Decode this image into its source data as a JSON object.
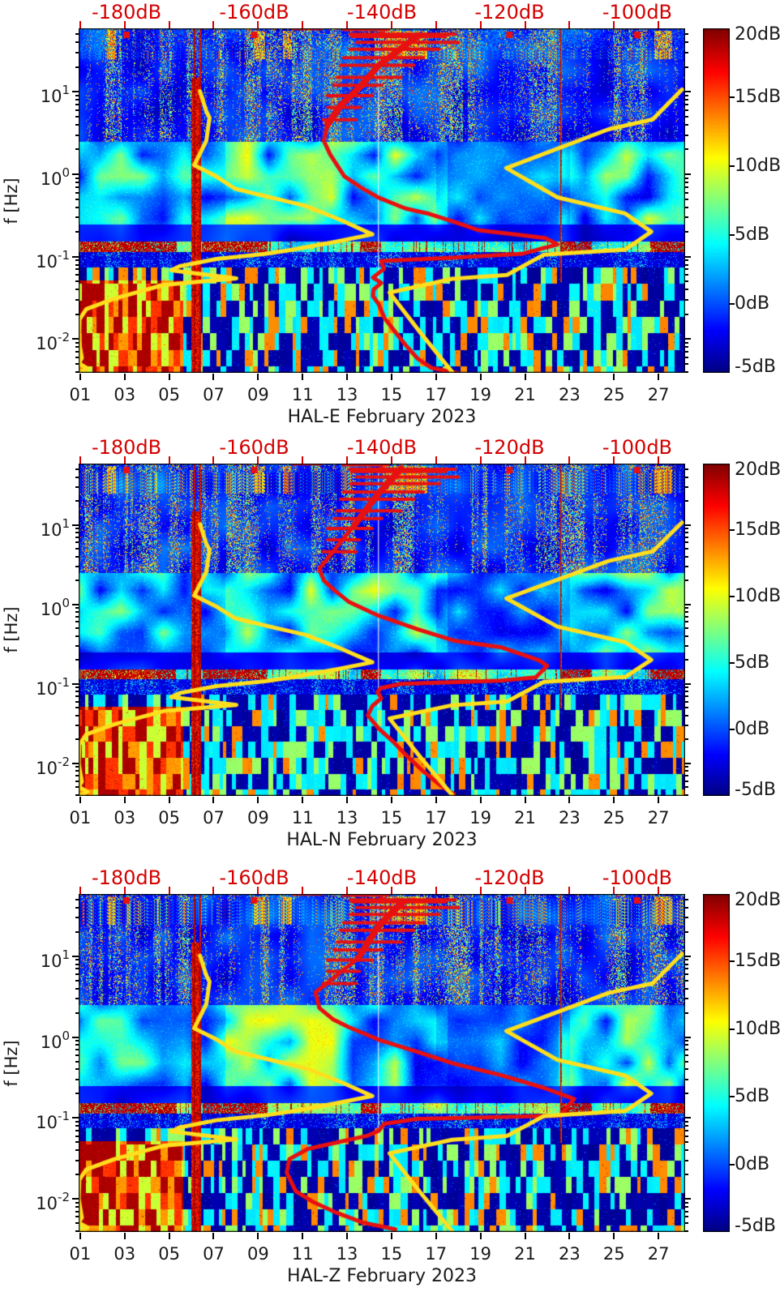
{
  "figure": {
    "background": "#ffffff",
    "ylabel": "f [Hz]",
    "panels": [
      {
        "id": "hal-e",
        "title": "HAL-E February 2023"
      },
      {
        "id": "hal-n",
        "title": "HAL-N February 2023"
      },
      {
        "id": "hal-z",
        "title": "HAL-Z February 2023"
      }
    ]
  },
  "axes": {
    "x_days": {
      "tick_labels": [
        "01",
        "03",
        "05",
        "07",
        "09",
        "11",
        "13",
        "15",
        "17",
        "19",
        "21",
        "23",
        "25",
        "27"
      ],
      "tick_days": [
        1,
        3,
        5,
        7,
        9,
        11,
        13,
        15,
        17,
        19,
        21,
        23,
        25,
        27
      ],
      "day_min": 0.93,
      "day_max": 28.2
    },
    "y_freq": {
      "unit": "Hz",
      "scale": "log",
      "decade_exponents": [
        1,
        0,
        -1,
        -2
      ],
      "hz_min": 0.0039,
      "hz_max": 59
    },
    "top_psd": {
      "labels": [
        "-180dB",
        "-160dB",
        "-140dB",
        "-120dB",
        "-100dB"
      ],
      "values": [
        -180,
        -160,
        -140,
        -120,
        -100
      ],
      "db_min": -187.5,
      "db_max": -92.5,
      "color": "#d40000"
    }
  },
  "colorbar": {
    "colormap": "jet",
    "vmin": -5,
    "vmax": 20,
    "tick_labels": [
      "20dB",
      "15dB",
      "10dB",
      "5dB",
      "0dB",
      "-5dB"
    ],
    "tick_values": [
      20,
      15,
      10,
      5,
      0,
      -5
    ]
  },
  "chart_data": {
    "type": "heatmap",
    "subtype": "seismic power spectrogram with overlaid PSD noise curves",
    "panels": [
      "HAL-E February 2023",
      "HAL-N February 2023",
      "HAL-Z February 2023"
    ],
    "x_axis": {
      "meaning": "day of February 2023",
      "ticks": [
        1,
        3,
        5,
        7,
        9,
        11,
        13,
        15,
        17,
        19,
        21,
        23,
        25,
        27
      ]
    },
    "y_axis": {
      "label": "f [Hz]",
      "scale": "log",
      "range_hz": [
        0.0039,
        59
      ]
    },
    "color_axis": {
      "unit": "dB",
      "range": [
        -5,
        20
      ],
      "colormap": "jet"
    },
    "psd_axis": {
      "unit": "dB",
      "range": [
        -187.5,
        -92.5
      ],
      "tick_values": [
        -180,
        -160,
        -140,
        -120,
        -100
      ]
    },
    "curve_colors": {
      "noise_models": "#ffdf1d",
      "observed": "#e81010"
    },
    "noise_model_curves": {
      "nlnm_yellow_db_hz": [
        [
          -168.5,
          10.2
        ],
        [
          -167.5,
          5.8
        ],
        [
          -167.0,
          4.85
        ],
        [
          -167.5,
          2.56
        ],
        [
          -169.4,
          1.29
        ],
        [
          -166.0,
          0.95
        ],
        [
          -163.0,
          0.67
        ],
        [
          -157.3,
          0.52
        ],
        [
          -152.0,
          0.415
        ],
        [
          -146.5,
          0.28
        ],
        [
          -141.5,
          0.187
        ],
        [
          -147.2,
          0.152
        ],
        [
          -154.1,
          0.121
        ],
        [
          -158.3,
          0.108
        ],
        [
          -165.9,
          0.094
        ],
        [
          -171.7,
          0.0766
        ],
        [
          -173.0,
          0.0684
        ],
        [
          -162.8,
          0.0545
        ],
        [
          -174.2,
          0.0455
        ],
        [
          -181.9,
          0.031
        ],
        [
          -186.3,
          0.0231
        ],
        [
          -187.4,
          0.0172
        ],
        [
          -187.5,
          0.01
        ],
        [
          -187.0,
          0.0059
        ],
        [
          -187.5,
          0.0051
        ],
        [
          -186.1,
          0.0044
        ],
        [
          -187.4,
          0.0039
        ]
      ],
      "nhnm_yellow_db_hz": [
        [
          -93.0,
          10.7
        ],
        [
          -97.6,
          4.63
        ],
        [
          -104.5,
          3.52
        ],
        [
          -120.5,
          1.19
        ],
        [
          -112.5,
          0.525
        ],
        [
          -101.9,
          0.335
        ],
        [
          -97.8,
          0.201
        ],
        [
          -101.9,
          0.122
        ],
        [
          -114.6,
          0.106
        ],
        [
          -120.4,
          0.06
        ],
        [
          -129.0,
          0.0539
        ],
        [
          -138.8,
          0.0367
        ],
        [
          -133.9,
          0.0118
        ],
        [
          -129.0,
          0.004
        ]
      ]
    },
    "observed_psd_curves": {
      "HAL-E": [
        [
          -134.5,
          47
        ],
        [
          -140.5,
          21
        ],
        [
          -143.4,
          11.5
        ],
        [
          -146.5,
          6.8
        ],
        [
          -148.5,
          4.0
        ],
        [
          -149.1,
          2.55
        ],
        [
          -148.1,
          1.74
        ],
        [
          -145.9,
          0.95
        ],
        [
          -143.4,
          0.7
        ],
        [
          -140.5,
          0.52
        ],
        [
          -136.3,
          0.385
        ],
        [
          -132.5,
          0.33
        ],
        [
          -128.7,
          0.265
        ],
        [
          -124.9,
          0.21
        ],
        [
          -118.8,
          0.185
        ],
        [
          -114.4,
          0.168
        ],
        [
          -112.5,
          0.141
        ],
        [
          -117.9,
          0.109
        ],
        [
          -129.0,
          0.097
        ],
        [
          -140.1,
          0.089
        ],
        [
          -139.7,
          0.071
        ],
        [
          -141.4,
          0.056
        ],
        [
          -140.1,
          0.048
        ],
        [
          -141.3,
          0.04
        ],
        [
          -141.4,
          0.0333
        ],
        [
          -140.5,
          0.0265
        ],
        [
          -139.6,
          0.018
        ],
        [
          -137.9,
          0.0122
        ],
        [
          -136.3,
          0.0085
        ],
        [
          -134.4,
          0.0058
        ],
        [
          -132.3,
          0.0045
        ],
        [
          -126.2,
          0.0036
        ]
      ],
      "HAL-N": [
        [
          -137.0,
          51
        ],
        [
          -140.5,
          25
        ],
        [
          -144.3,
          10
        ],
        [
          -149.8,
          2.8
        ],
        [
          -149.1,
          2.0
        ],
        [
          -147.5,
          1.52
        ],
        [
          -145.2,
          1.08
        ],
        [
          -140.5,
          0.72
        ],
        [
          -134.5,
          0.49
        ],
        [
          -128.7,
          0.35
        ],
        [
          -121.4,
          0.29
        ],
        [
          -115.4,
          0.198
        ],
        [
          -114.1,
          0.169
        ],
        [
          -115.9,
          0.121
        ],
        [
          -121.4,
          0.11
        ],
        [
          -137.0,
          0.1
        ],
        [
          -140.1,
          0.089
        ],
        [
          -140.7,
          0.079
        ],
        [
          -140.1,
          0.066
        ],
        [
          -141.5,
          0.0527
        ],
        [
          -142.2,
          0.0401
        ],
        [
          -140.5,
          0.0274
        ],
        [
          -138.3,
          0.019
        ],
        [
          -136.3,
          0.0129
        ],
        [
          -133.7,
          0.0082
        ],
        [
          -130.7,
          0.0052
        ],
        [
          -128.7,
          0.0041
        ]
      ],
      "HAL-Z": [
        [
          -136.7,
          47
        ],
        [
          -140.5,
          24
        ],
        [
          -143.7,
          9.5
        ],
        [
          -150.4,
          3.6
        ],
        [
          -149.8,
          2.3
        ],
        [
          -147.7,
          1.67
        ],
        [
          -145.2,
          1.33
        ],
        [
          -140.5,
          0.93
        ],
        [
          -134.5,
          0.66
        ],
        [
          -128.7,
          0.47
        ],
        [
          -121.4,
          0.34
        ],
        [
          -114.6,
          0.236
        ],
        [
          -109.9,
          0.172
        ],
        [
          -112.1,
          0.107
        ],
        [
          -134.5,
          0.0975
        ],
        [
          -139.6,
          0.0851
        ],
        [
          -140.5,
          0.0696
        ],
        [
          -142.2,
          0.0607
        ],
        [
          -151.6,
          0.0415
        ],
        [
          -154.5,
          0.031
        ],
        [
          -154.9,
          0.0211
        ],
        [
          -153.5,
          0.0125
        ],
        [
          -150.7,
          0.0091
        ],
        [
          -147.2,
          0.0068
        ],
        [
          -143.0,
          0.0051
        ],
        [
          -137.9,
          0.0042
        ]
      ]
    },
    "red_top_spikes_hz_db0_db1": [
      [
        58.5,
        -154,
        -149.5
      ],
      [
        57,
        -146,
        -139
      ],
      [
        50,
        -145,
        -128.5
      ],
      [
        47,
        -144.7,
        -130
      ],
      [
        40,
        -144,
        -128
      ],
      [
        33,
        -145,
        -131
      ],
      [
        26,
        -146,
        -133.5
      ],
      [
        21,
        -146.5,
        -135
      ],
      [
        15,
        -147,
        -137
      ],
      [
        12,
        -147.5,
        -140
      ],
      [
        9,
        -148.5,
        -141.5
      ],
      [
        6.5,
        -148.5,
        -143.5
      ],
      [
        4.6,
        -149.2,
        -144
      ]
    ],
    "red_corner_marker_db_values": [
      -180,
      -160,
      -140,
      -120,
      -100
    ],
    "spectrogram_features": {
      "red_band_hz": [
        0.115,
        0.155
      ],
      "red_band_hot_day_spans": [
        [
          1,
          5.3
        ],
        [
          6.5,
          9.4
        ],
        [
          13.6,
          14.5
        ],
        [
          22.6,
          24.0
        ],
        [
          26.6,
          28.2
        ]
      ],
      "blocky_below_hz": 0.075,
      "hot_lowfreq_corner": {
        "day_max": 5.6,
        "hz_below": 0.052
      },
      "mid_band_bright_day_spans": [
        [
          7.5,
          17
        ],
        [
          23,
          28.2
        ]
      ],
      "mid_band_dark_day_spans": [
        [
          17.5,
          22.5
        ]
      ],
      "top_hot_patch_day_spans": [
        [
          14.6,
          16.6
        ],
        [
          10.1,
          10.5
        ],
        [
          26.8,
          27.6
        ],
        [
          2.2,
          2.6
        ],
        [
          8.8,
          9.3
        ]
      ],
      "vertical_events": [
        {
          "day": 6.2,
          "half_width_days": 0.22,
          "intensity": 0.92,
          "hz_min": 0.004,
          "hz_max": 15
        },
        {
          "day": 6.12,
          "half_width_days": 0.035,
          "intensity": 0.95,
          "hz_min": 0.004,
          "hz_max": 59
        },
        {
          "day": 6.38,
          "half_width_days": 0.035,
          "intensity": 0.9,
          "hz_min": 0.004,
          "hz_max": 59
        },
        {
          "day": 22.6,
          "half_width_days": 0.03,
          "intensity": 0.85,
          "hz_min": 0.05,
          "hz_max": 59
        },
        {
          "day": 14.4,
          "half_width_days": 0.03,
          "intensity": -1,
          "hz_min": 0.05,
          "hz_max": 50
        }
      ]
    }
  }
}
